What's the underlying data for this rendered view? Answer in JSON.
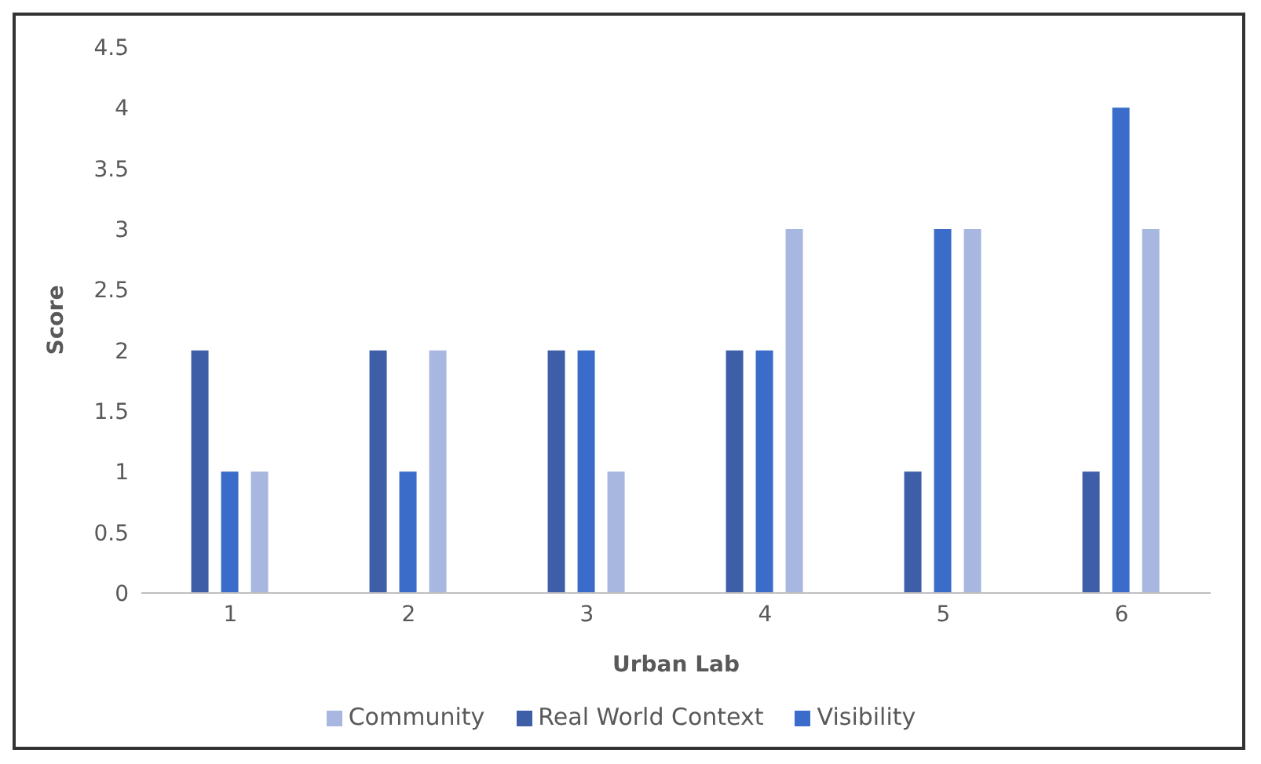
{
  "chart_data": {
    "type": "bar",
    "xlabel": "Urban Lab",
    "ylabel": "Score",
    "categories": [
      "1",
      "2",
      "3",
      "4",
      "5",
      "6"
    ],
    "series": [
      {
        "name": "Real World Context",
        "color": "#3f5ea8",
        "values": [
          2,
          2,
          2,
          2,
          1,
          1
        ]
      },
      {
        "name": "Visibility",
        "color": "#3b6cc9",
        "values": [
          1,
          1,
          2,
          2,
          3,
          4
        ]
      },
      {
        "name": "Community",
        "color": "#a8b7e0",
        "values": [
          1,
          2,
          1,
          3,
          3,
          3
        ]
      }
    ],
    "ylim": [
      0,
      4.5
    ],
    "yticks": [
      0,
      0.5,
      1,
      1.5,
      2,
      2.5,
      3,
      3.5,
      4,
      4.5
    ],
    "grid": false,
    "legend": "bottom"
  }
}
